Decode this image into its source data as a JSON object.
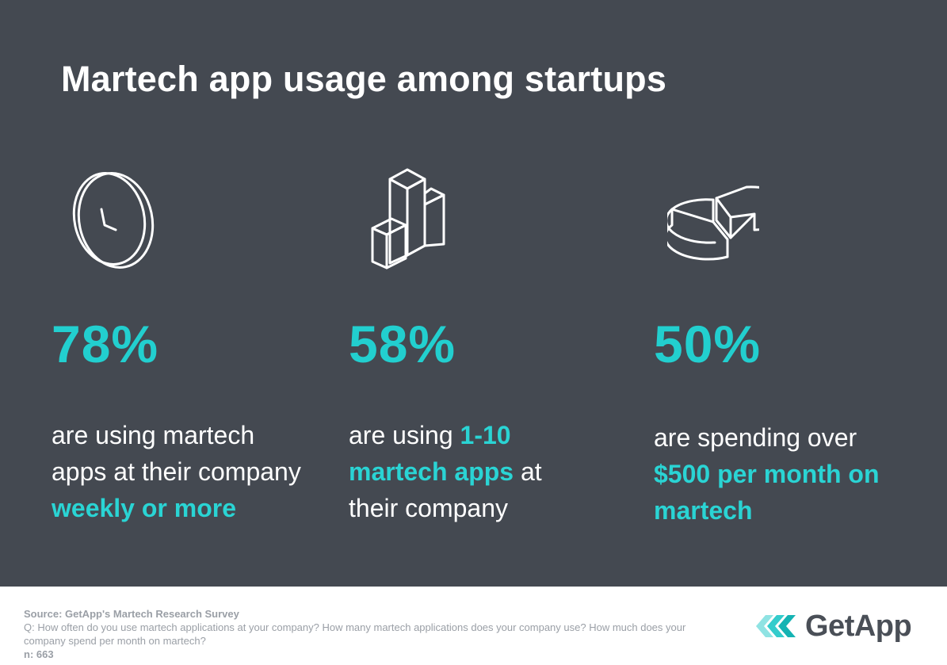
{
  "title": "Martech app usage among startups",
  "stats": [
    {
      "icon": "clock-icon",
      "value": "78%",
      "text_before": "are using martech apps at their company ",
      "highlight": "weekly or more",
      "text_after": ""
    },
    {
      "icon": "bar-chart-icon",
      "value": "58%",
      "text_before": "are using ",
      "highlight": "1-10 martech apps",
      "text_after": " at their company"
    },
    {
      "icon": "pie-chart-icon",
      "value": "50%",
      "text_before": "are spending over ",
      "highlight": "$500 per month on martech",
      "text_after": ""
    }
  ],
  "footer": {
    "source": "Source: GetApp's Martech Research Survey",
    "question": "Q: How often do you use martech applications at your company? How many martech applications does your company use? How much does your company spend per month on martech?",
    "n": "n: 663"
  },
  "logo": {
    "text": "GetApp",
    "icon": "getapp-chevrons-icon"
  },
  "colors": {
    "background": "#444951",
    "accent": "#22cfcf",
    "text": "#ffffff",
    "footer_text": "#9a9fa6"
  }
}
